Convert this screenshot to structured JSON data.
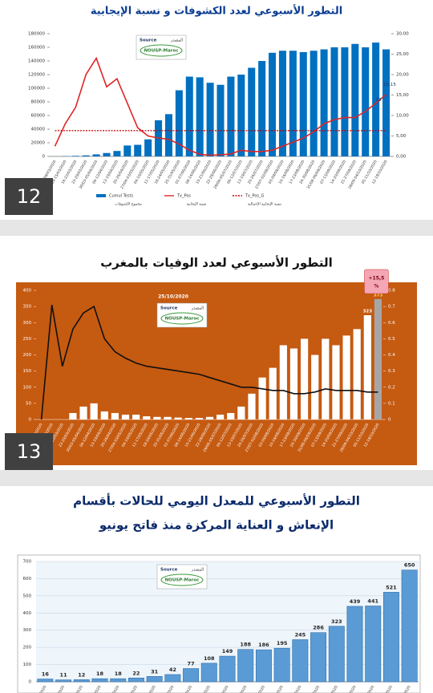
{
  "chart_data": [
    {
      "type": "combo",
      "title": "التطور الأسبوعي لعدد الكشوفات و نسبة الإيجابية",
      "badge": "12",
      "source": {
        "label": "Source",
        "label_ar": "المصدر",
        "name": "NOUSP-Maroc"
      },
      "categories": [
        "02-08/03/2020",
        "09-15/03/2020",
        "16-22/03/2020",
        "23-29/03/2020",
        "30/03-05/04/2020",
        "06-12/04/2020",
        "13-19/04/2020",
        "20-26/04/2020",
        "27/04-03/05/2020",
        "04-10/05/2020",
        "11-17/05/2020",
        "18-24/05/2020",
        "25-31/05/2020",
        "01-07/06/2020",
        "08-14/06/2020",
        "15-21/06/2020",
        "22-28/06/2020",
        "29/06-05/07/2020",
        "06-12/07/2020",
        "13-19/07/2020",
        "20-26/07/2020",
        "27/07-02/08/2020",
        "03-09/08/2020",
        "10-16/08/2020",
        "17-23/08/2020",
        "24-30/08/2020",
        "31/08-06/09/2020",
        "07-13/09/2020",
        "14-20/09/2020",
        "21-27/09/2020",
        "28/09-04/10/2020",
        "05-11/10/2020",
        "12-18/10/2020"
      ],
      "series": [
        {
          "name": "Cumul Tests",
          "name_ar": "مجموع الكشوفات",
          "kind": "bar",
          "color": "#0070c0",
          "values": [
            100,
            300,
            800,
            1500,
            3000,
            5000,
            8000,
            16000,
            17000,
            25000,
            53000,
            62000,
            97000,
            117000,
            116000,
            108000,
            105000,
            117000,
            120000,
            130000,
            140000,
            152000,
            155000,
            155000,
            153000,
            155000,
            157000,
            160000,
            160000,
            165000,
            160000,
            167000,
            157000
          ]
        },
        {
          "name": "Tx_Pos",
          "name_ar": "نسبة الإيجابية",
          "kind": "line",
          "axis": "y2",
          "color": "#e02424",
          "values": [
            2.5,
            8,
            12,
            20,
            24,
            17,
            19,
            13,
            7,
            5,
            4.5,
            4.2,
            3,
            1.5,
            0.5,
            0.3,
            0.4,
            0.6,
            1.5,
            1.2,
            1.2,
            1.5,
            2.5,
            3.5,
            4.5,
            6,
            8,
            9,
            9.5,
            9.5,
            11,
            13,
            15.15
          ]
        },
        {
          "name": "Tx_Pos_G",
          "name_ar": "نسبة الإيجابية الإجمالية",
          "kind": "line",
          "axis": "y2",
          "color": "#c00000",
          "dash": true,
          "values": [
            6.3,
            6.3,
            6.3,
            6.3,
            6.3,
            6.3,
            6.3,
            6.3,
            6.3,
            6.3,
            6.3,
            6.3,
            6.3,
            6.3,
            6.3,
            6.3,
            6.3,
            6.3,
            6.3,
            6.3,
            6.3,
            6.3,
            6.3,
            6.3,
            6.3,
            6.3,
            6.3,
            6.3,
            6.3,
            6.3,
            6.3,
            6.3,
            6.3
          ]
        }
      ],
      "annotations": [
        "15,15",
        "13"
      ],
      "ylim": [
        0,
        180000
      ],
      "yticks": [
        0,
        20000,
        40000,
        60000,
        80000,
        100000,
        120000,
        140000,
        160000,
        180000
      ],
      "y2lim": [
        0,
        30
      ],
      "y2ticks": [
        {
          "value": 0,
          "label": "0,00"
        },
        {
          "value": 5,
          "label": "5,00"
        },
        {
          "value": 10,
          "label": "10,00"
        },
        {
          "value": 15,
          "label": "15,00"
        },
        {
          "value": 20,
          "label": "20,00"
        },
        {
          "value": 25,
          "label": "25,00"
        },
        {
          "value": 30,
          "label": "30,00"
        }
      ],
      "grid": false,
      "legend": "bottom"
    },
    {
      "type": "combo",
      "title": "التطور الأسبوعي لعدد الوفيات بالمغرب",
      "badge": "13",
      "date": "25/10/2020",
      "annotation": {
        "text": "+15,5",
        "unit": "%"
      },
      "background": "#c55a11",
      "source": {
        "label": "Source",
        "label_ar": "المصدر",
        "name": "NOUSP-Maroc"
      },
      "categories": [
        "02-08/03/2020",
        "09-15/03/2020",
        "16-22/03/2020",
        "23-29/03/2020",
        "30/03-05/04/2020",
        "06-12/04/2020",
        "13-19/04/2020",
        "20-26/04/2020",
        "27/04-03/05/2020",
        "04-10/05/2020",
        "11-17/05/2020",
        "18-24/05/2020",
        "25-31/05/2020",
        "01-07/06/2020",
        "08-14/06/2020",
        "15-21/06/2020",
        "22-28/06/2020",
        "29/06-05/07/2020",
        "06-12/07/2020",
        "13-19/07/2020",
        "20-26/07/2020",
        "27/07-02/08/2020",
        "03-09/08/2020",
        "10-16/08/2020",
        "17-23/08/2020",
        "24-30/08/2020",
        "31/08-06/09/2020",
        "07-13/09/2020",
        "14-20/09/2020",
        "21-27/09/2020",
        "28/09-04/10/2020",
        "05-11/10/2020",
        "12-18/10/2020"
      ],
      "series": [
        {
          "kind": "bar",
          "color": "#ffffff",
          "highlight_last": "#a6a6a6",
          "values": [
            0,
            0,
            0,
            20,
            40,
            50,
            25,
            20,
            15,
            15,
            10,
            8,
            8,
            6,
            5,
            5,
            8,
            15,
            20,
            40,
            80,
            130,
            160,
            230,
            220,
            250,
            200,
            250,
            230,
            260,
            280,
            323,
            373
          ],
          "value_labels": [
            null,
            null,
            null,
            null,
            null,
            null,
            null,
            null,
            null,
            null,
            null,
            null,
            null,
            null,
            null,
            null,
            null,
            null,
            null,
            null,
            null,
            null,
            null,
            null,
            null,
            null,
            null,
            null,
            null,
            null,
            null,
            "323",
            "373"
          ]
        },
        {
          "kind": "line",
          "axis": "y2",
          "color": "#111111",
          "values": [
            0,
            0.71,
            0.33,
            0.56,
            0.66,
            0.7,
            0.5,
            0.42,
            0.38,
            0.35,
            0.33,
            0.32,
            0.31,
            0.3,
            0.29,
            0.28,
            0.26,
            0.24,
            0.22,
            0.2,
            0.2,
            0.19,
            0.18,
            0.18,
            0.16,
            0.16,
            0.17,
            0.19,
            0.18,
            0.18,
            0.18,
            0.17,
            0.17
          ]
        }
      ],
      "ylim": [
        0,
        400
      ],
      "yticks": [
        0,
        50,
        100,
        150,
        200,
        250,
        300,
        350,
        400
      ],
      "y2lim": [
        0,
        0.8
      ],
      "y2ticks": [
        0,
        0.1,
        0.2,
        0.3,
        0.4,
        0.5,
        0.6,
        0.7,
        0.8
      ],
      "grid": false
    },
    {
      "type": "bar",
      "title": [
        "التطور الأسبوعي للمعدل اليومي للحالات بأقسام",
        "الإنعاش و العناية المركزة منذ فاتح يونيو"
      ],
      "source": {
        "label": "Source",
        "label_ar": "المصدر",
        "name": "NOUSP-Maroc"
      },
      "categories": [
        "01-07/06/2020",
        "08-14/06/2020",
        "15-21/06/2020",
        "22-28/06/2020",
        "29/06-05/07/2020",
        "06-12/07/2020",
        "13-19/07/2020",
        "20-26/07/2020",
        "27/07-02/08/2020",
        "03-09/08/2020",
        "10-16/08/2020",
        "17-23/08/2020",
        "24-30/08/2020",
        "31/08-06/09/2020",
        "07-13/09/2020",
        "14-20/09/2020",
        "21-27/09/2020",
        "28/09-04/10/2020",
        "05-11/10/2020",
        "12-18/10/2020",
        "19-25/10/2020"
      ],
      "series": [
        {
          "kind": "bar",
          "color": "#5b9bd5",
          "data_labels": true,
          "values": [
            16,
            11,
            12,
            18,
            18,
            22,
            31,
            42,
            77,
            108,
            149,
            188,
            186,
            195,
            245,
            286,
            323,
            439,
            441,
            521,
            650
          ]
        }
      ],
      "ylim": [
        0,
        700
      ],
      "yticks": [
        0,
        100,
        200,
        300,
        400,
        500,
        600,
        700
      ],
      "grid": true
    }
  ]
}
